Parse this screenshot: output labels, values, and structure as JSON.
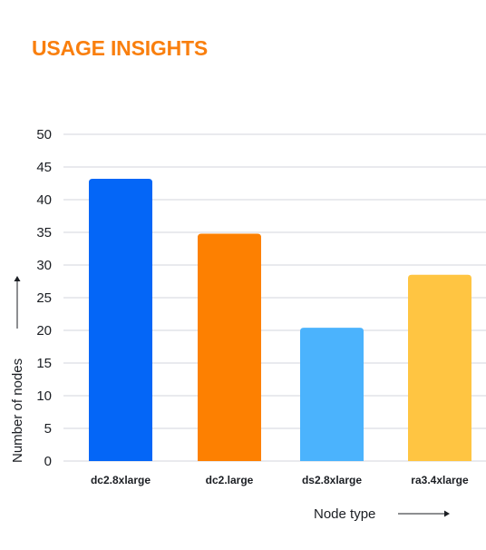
{
  "chart_data": {
    "type": "bar",
    "title": "USAGE INSIGHTS",
    "xlabel": "Node type",
    "ylabel": "Number of nodes",
    "categories": [
      "dc2.8xlarge",
      "dc2.large",
      "ds2.8xlarge",
      "ra3.4xlarge"
    ],
    "values": [
      43.2,
      34.8,
      20.4,
      28.5
    ],
    "colors": [
      "#0466f7",
      "#fd8001",
      "#4bb3fd",
      "#ffc542"
    ],
    "ylim": [
      0,
      50
    ],
    "yticks": [
      0,
      5,
      10,
      15,
      20,
      25,
      30,
      35,
      40,
      45,
      50
    ],
    "grid": true,
    "title_color": "#f97f0e"
  }
}
